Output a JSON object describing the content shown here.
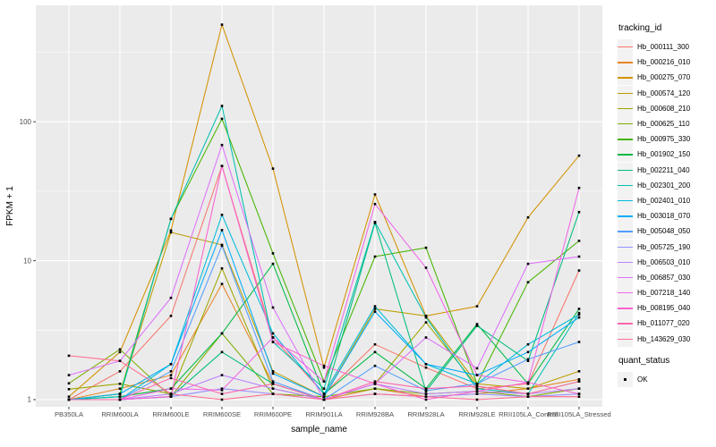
{
  "figure": {
    "xlabel": "sample_name",
    "ylabel": "FPKM + 1",
    "legend_title": "tracking_id",
    "quant_legend_title": "quant_status",
    "quant_ok_label": "OK"
  },
  "style": {
    "panel_bg": "#EBEBEB",
    "grid_major": "#FFFFFF",
    "grid_minor": "#FFFFFF",
    "key_bg": "#F2F2F2",
    "tick_text": "#4D4D4D",
    "tick_mark": "#333333",
    "point_color": "#000000"
  },
  "chart_data": {
    "type": "line",
    "x_type": "categorical",
    "yscale": "log10",
    "ylabel_ticks": [
      "1",
      "10",
      "100"
    ],
    "yticks": [
      1,
      10,
      100
    ],
    "yminor": [
      3.1623,
      31.623,
      316.23
    ],
    "ylim": [
      0.88,
      660
    ],
    "grid": true,
    "legend_position": "right",
    "point_shape": "filled-square",
    "categories": [
      "PB350LA",
      "RRIM600LA",
      "RRIM600LE",
      "RRIM600SE",
      "RRIM600PE",
      "RRIM901LA",
      "RRIM928BA",
      "RRIM928LA",
      "RRIM928LE",
      "RRII105LA_Control",
      "RRII105LA_Stressed"
    ],
    "series": [
      {
        "name": "Hb_000111_300",
        "color": "#F8766D",
        "values": [
          1.0,
          1.6,
          4.0,
          48,
          2.8,
          1.1,
          2.5,
          1.7,
          1.2,
          1.3,
          8.5
        ]
      },
      {
        "name": "Hb_000216_010",
        "color": "#E88526",
        "values": [
          1.0,
          1.2,
          1.5,
          6.8,
          1.3,
          1.0,
          1.2,
          1.05,
          1.1,
          1.2,
          1.4
        ]
      },
      {
        "name": "Hb_000275_070",
        "color": "#D39200",
        "values": [
          1.05,
          2.2,
          16.5,
          500,
          46,
          1.7,
          30,
          4.0,
          4.7,
          20.5,
          57
        ]
      },
      {
        "name": "Hb_000574_120",
        "color": "#BC9D00",
        "values": [
          1.0,
          1.1,
          16.0,
          13.0,
          1.6,
          1.05,
          4.5,
          4.0,
          1.3,
          1.2,
          1.6
        ]
      },
      {
        "name": "Hb_000608_210",
        "color": "#9FA600",
        "values": [
          1.19,
          1.3,
          1.1,
          8.8,
          1.2,
          1.0,
          1.3,
          3.6,
          1.25,
          1.1,
          1.35
        ]
      },
      {
        "name": "Hb_000625_110",
        "color": "#7CAE00",
        "values": [
          1.31,
          2.3,
          1.05,
          3.0,
          1.1,
          1.05,
          1.2,
          1.1,
          1.15,
          1.05,
          1.2
        ]
      },
      {
        "name": "Hb_000975_330",
        "color": "#45B500",
        "values": [
          1.0,
          1.1,
          20.0,
          105,
          11.3,
          1.35,
          10.7,
          12.4,
          1.3,
          7.0,
          13.9
        ]
      },
      {
        "name": "Hb_001902_150",
        "color": "#00BA42",
        "values": [
          1.0,
          1.05,
          1.2,
          3.0,
          9.5,
          1.1,
          2.2,
          1.2,
          3.5,
          1.3,
          4.5
        ]
      },
      {
        "name": "Hb_002211_040",
        "color": "#00BE7C",
        "values": [
          1.0,
          1.0,
          1.05,
          2.2,
          1.3,
          1.0,
          18.7,
          1.15,
          3.4,
          1.9,
          22.4
        ]
      },
      {
        "name": "Hb_002301_200",
        "color": "#00C0AF",
        "values": [
          1.0,
          1.05,
          20.0,
          130,
          2.6,
          1.2,
          19.0,
          3.9,
          1.2,
          1.1,
          4.2
        ]
      },
      {
        "name": "Hb_002401_010",
        "color": "#00BBDA",
        "values": [
          1.0,
          1.0,
          1.8,
          21.4,
          3.0,
          1.1,
          4.7,
          1.8,
          1.3,
          2.5,
          4.1
        ]
      },
      {
        "name": "Hb_003018_070",
        "color": "#00ADF9",
        "values": [
          1.0,
          1.1,
          1.8,
          16.6,
          1.54,
          1.05,
          4.3,
          1.8,
          1.5,
          2.2,
          3.9
        ]
      },
      {
        "name": "Hb_005048_050",
        "color": "#519DFF",
        "values": [
          1.0,
          1.0,
          1.6,
          12.8,
          1.35,
          1.0,
          1.75,
          1.16,
          1.3,
          1.95,
          2.6
        ]
      },
      {
        "name": "Hb_005725_190",
        "color": "#9590FF",
        "values": [
          1.0,
          1.0,
          1.05,
          1.2,
          1.1,
          1.0,
          1.1,
          1.05,
          1.1,
          1.05,
          1.1
        ]
      },
      {
        "name": "Hb_006503_010",
        "color": "#BC81FF",
        "values": [
          1.0,
          1.0,
          1.1,
          1.5,
          1.2,
          1.0,
          1.3,
          1.1,
          1.15,
          1.1,
          1.2
        ]
      },
      {
        "name": "Hb_006857_030",
        "color": "#DD71FA",
        "values": [
          1.5,
          1.9,
          5.4,
          68,
          4.6,
          1.0,
          1.3,
          2.8,
          1.68,
          9.5,
          10.7
        ]
      },
      {
        "name": "Hb_007218_140",
        "color": "#F166E8",
        "values": [
          1.0,
          1.0,
          1.2,
          1.17,
          2.8,
          1.35,
          25.6,
          8.9,
          1.5,
          1.33,
          33.4
        ]
      },
      {
        "name": "Hb_008195_040",
        "color": "#FC61CF",
        "values": [
          1.0,
          1.0,
          1.05,
          48,
          2.6,
          1.75,
          1.3,
          1.0,
          1.15,
          1.33,
          1.1
        ]
      },
      {
        "name": "Hb_011077_020",
        "color": "#FF65AE",
        "values": [
          1.0,
          1.0,
          1.43,
          1.1,
          1.3,
          1.0,
          1.35,
          1.2,
          1.25,
          1.1,
          1.35
        ]
      },
      {
        "name": "Hb_143629_030",
        "color": "#FF6C91",
        "values": [
          2.07,
          1.9,
          1.1,
          1.0,
          1.1,
          1.0,
          1.1,
          1.05,
          1.0,
          1.05,
          1.05
        ]
      }
    ]
  }
}
